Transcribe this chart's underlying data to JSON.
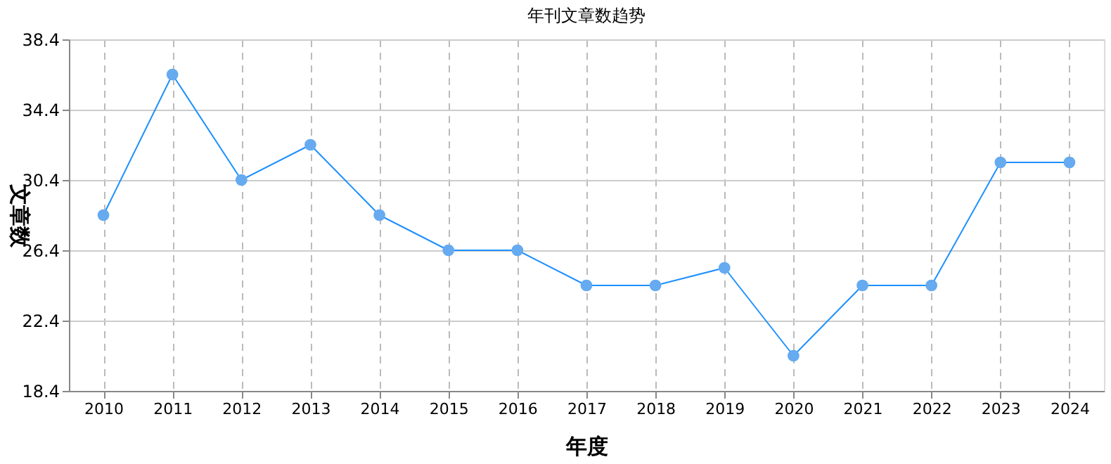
{
  "chart_data": {
    "type": "line",
    "title": "年刊文章数趋势",
    "xlabel": "年度",
    "ylabel": "文章数",
    "categories": [
      "2010",
      "2011",
      "2012",
      "2013",
      "2014",
      "2015",
      "2016",
      "2017",
      "2018",
      "2019",
      "2020",
      "2021",
      "2022",
      "2023",
      "2024"
    ],
    "series": [
      {
        "color": "#1e90ff",
        "values": [
          28.4,
          36.4,
          30.4,
          32.4,
          28.4,
          26.4,
          26.4,
          24.4,
          24.4,
          25.4,
          20.4,
          24.4,
          24.4,
          31.4,
          31.4
        ]
      }
    ],
    "ylim": [
      18.4,
      38.4
    ],
    "yticks": [
      18.4,
      22.4,
      26.4,
      30.4,
      34.4,
      38.4
    ],
    "grid": true,
    "marker": "circle",
    "line_style": "solid"
  }
}
